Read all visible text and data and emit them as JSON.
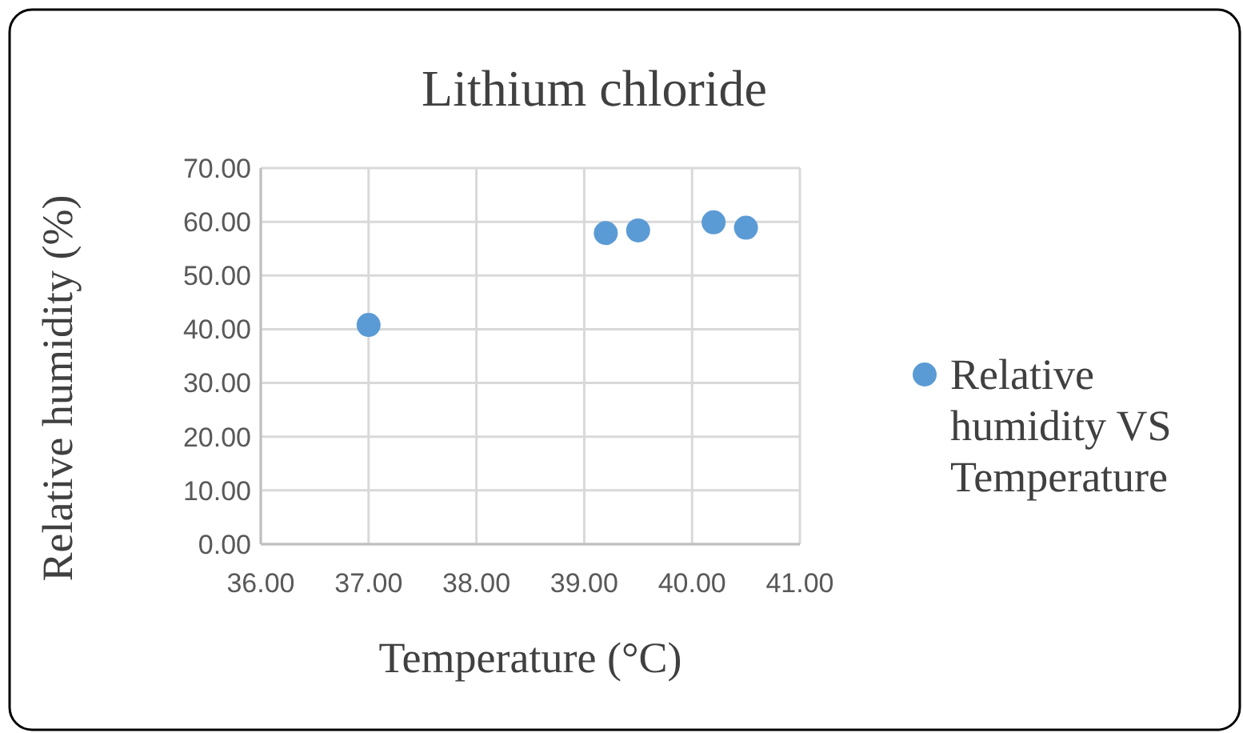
{
  "chart_data": {
    "type": "scatter",
    "title": "Lithium chloride",
    "xlabel": "Temperature (°C)",
    "ylabel": "Relative humidity (%)",
    "x": [
      37.0,
      39.2,
      39.5,
      40.2,
      40.5
    ],
    "series": [
      {
        "name": "Relative humidity VS Temperature",
        "color": "#5b9bd5",
        "values": [
          40.8,
          57.9,
          58.4,
          59.9,
          58.9
        ]
      }
    ],
    "xlim": [
      36,
      41
    ],
    "xticks": [
      {
        "value": 36,
        "label": "36.00"
      },
      {
        "value": 37,
        "label": "37.00"
      },
      {
        "value": 38,
        "label": "38.00"
      },
      {
        "value": 39,
        "label": "39.00"
      },
      {
        "value": 40,
        "label": "40.00"
      },
      {
        "value": 41,
        "label": "41.00"
      }
    ],
    "ylim": [
      0,
      70
    ],
    "yticks": [
      {
        "value": 0,
        "label": "0.00"
      },
      {
        "value": 10,
        "label": "10.00"
      },
      {
        "value": 20,
        "label": "20.00"
      },
      {
        "value": 30,
        "label": "30.00"
      },
      {
        "value": 40,
        "label": "40.00"
      },
      {
        "value": 50,
        "label": "50.00"
      },
      {
        "value": 60,
        "label": "60.00"
      },
      {
        "value": 70,
        "label": "70.00"
      }
    ],
    "grid": true,
    "legend": "right",
    "marker": "circle"
  }
}
